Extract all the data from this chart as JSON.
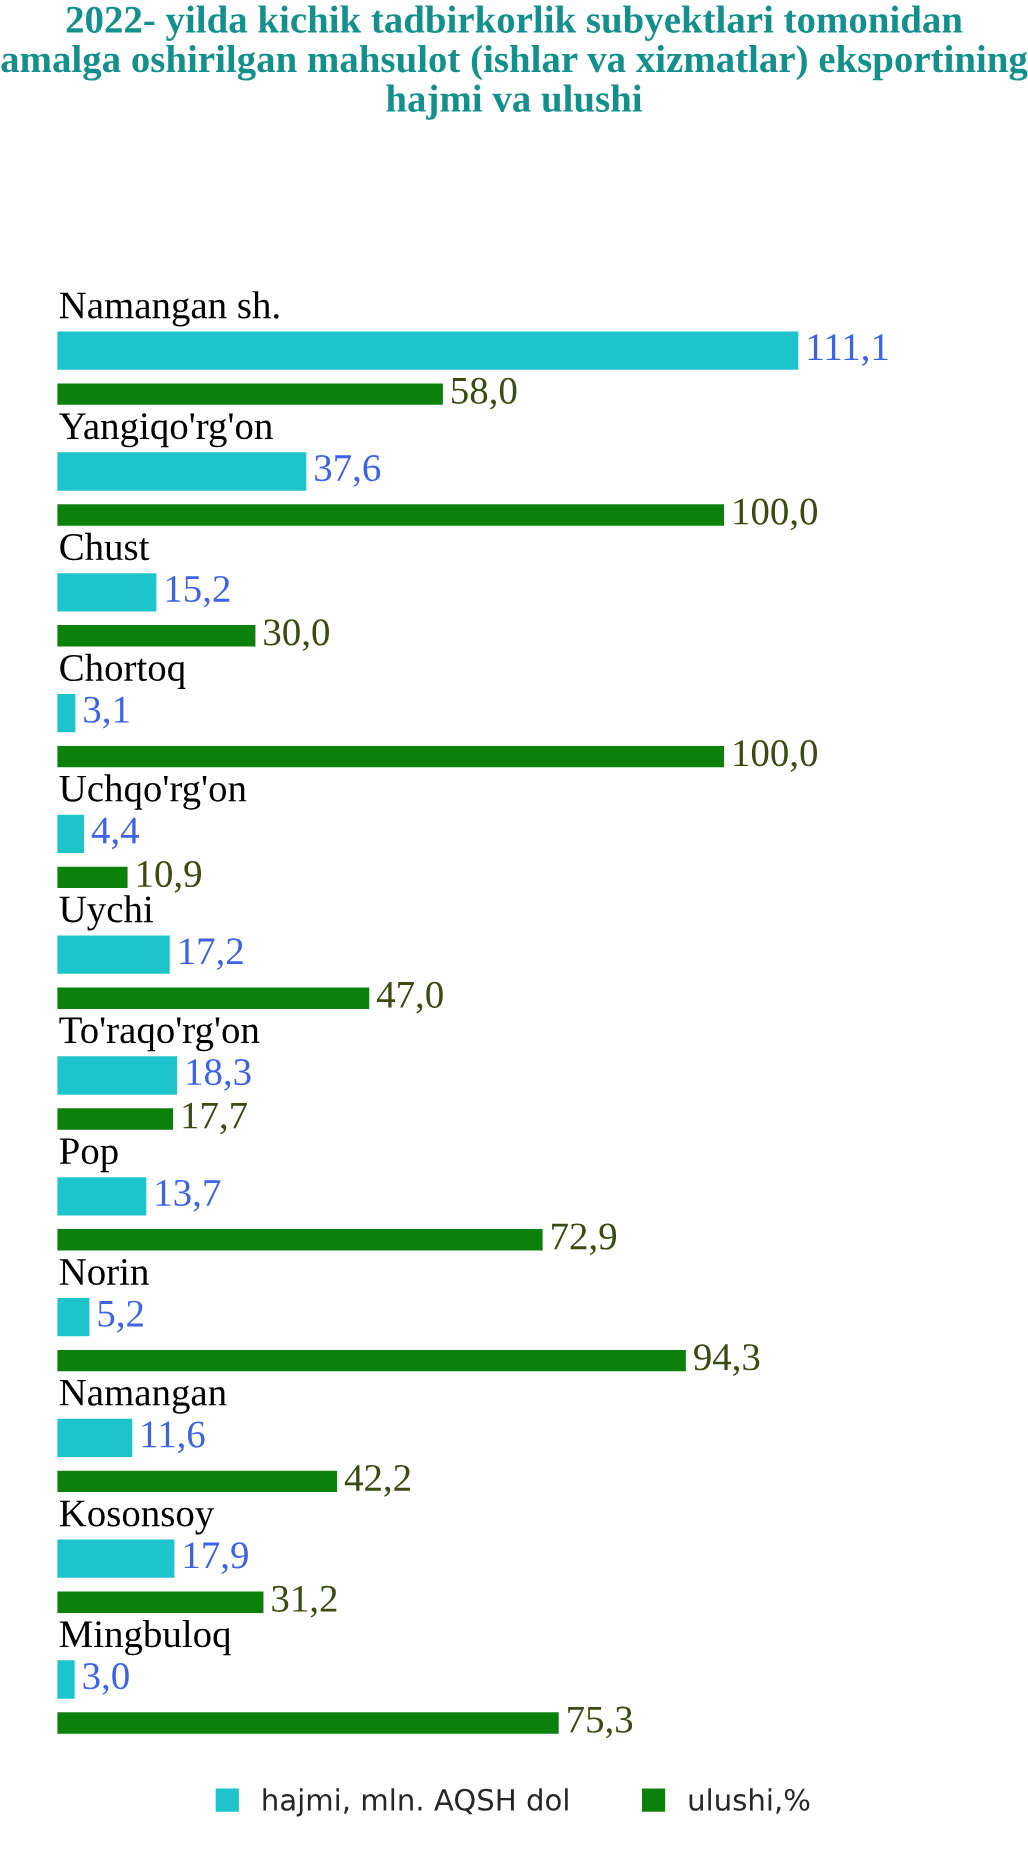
{
  "chart_data": {
    "type": "bar",
    "orientation": "horizontal",
    "title": "2022- yilda kichik tadbirkorlik subyektlari tomonidan amalga oshirilgan mahsulot (ishlar va xizmatlar) eksportining hajmi va ulushi",
    "categories": [
      "Namangan sh.",
      "Yangiqo'rg'on",
      "Chust",
      "Chortoq",
      "Uchqo'rg'on",
      "Uychi",
      "To'raqo'rg'on",
      "Pop",
      "Norin",
      "Namangan",
      "Kosonsoy",
      "Mingbuloq"
    ],
    "series": [
      {
        "name": "hajmi, mln. AQSH dol",
        "color": "#1ec4cc",
        "values": [
          111.1,
          37.6,
          15.2,
          3.1,
          4.4,
          17.2,
          18.3,
          13.7,
          5.2,
          11.6,
          17.9,
          3.0
        ],
        "value_labels": [
          "111,1",
          "37,6",
          "15,2",
          "3,1",
          "4,4",
          "17,2",
          "18,3",
          "13,7",
          "5,2",
          "11,6",
          "17,9",
          "3,0"
        ]
      },
      {
        "name": "ulushi,%",
        "color": "#0b800b",
        "values": [
          58.0,
          100.0,
          30.0,
          100.0,
          10.9,
          47.0,
          17.7,
          72.9,
          94.3,
          42.2,
          31.2,
          75.3
        ],
        "value_labels": [
          "58,0",
          "100,0",
          "30,0",
          "100,0",
          "10,9",
          "47,0",
          "17,7",
          "72,9",
          "94,3",
          "42,2",
          "31,2",
          "75,3"
        ]
      }
    ],
    "tick_labels": false,
    "legend": "bottom"
  }
}
